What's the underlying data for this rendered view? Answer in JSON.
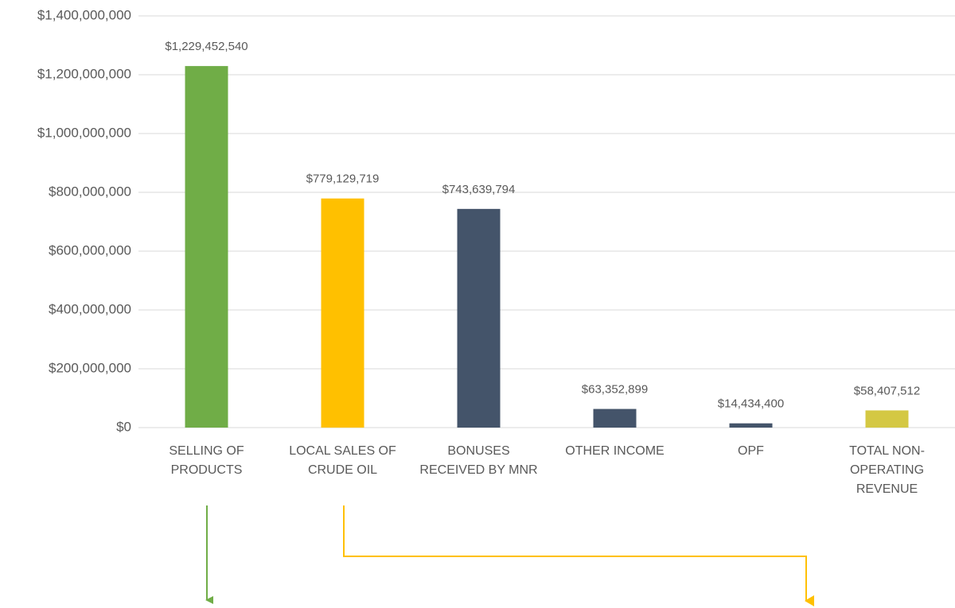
{
  "chart_data": {
    "type": "bar",
    "categories": [
      "SELLING OF PRODUCTS",
      "LOCAL SALES OF CRUDE OIL",
      "BONUSES RECEIVED BY MNR",
      "OTHER INCOME",
      "OPF",
      "TOTAL NON-OPERATING REVENUE"
    ],
    "values": [
      1229452540,
      779129719,
      743639794,
      63352899,
      14434400,
      58407512
    ],
    "value_labels": [
      "$1,229,452,540",
      "$779,129,719",
      "$743,639,794",
      "$63,352,899",
      "$14,434,400",
      "$58,407,512"
    ],
    "colors": [
      "#70ad47",
      "#ffc000",
      "#44546a",
      "#44546a",
      "#44546a",
      "#d4c843"
    ],
    "ylim": [
      0,
      1400000000
    ],
    "yticks": [
      {
        "value": 0,
        "label": "$0"
      },
      {
        "value": 200000000,
        "label": "$200,000,000"
      },
      {
        "value": 400000000,
        "label": "$400,000,000"
      },
      {
        "value": 600000000,
        "label": "$600,000,000"
      },
      {
        "value": 800000000,
        "label": "$800,000,000"
      },
      {
        "value": 1000000000,
        "label": "$1,000,000,000"
      },
      {
        "value": 1200000000,
        "label": "$1,200,000,000"
      },
      {
        "value": 1400000000,
        "label": "$1,400,000,000"
      }
    ],
    "grid": true
  }
}
